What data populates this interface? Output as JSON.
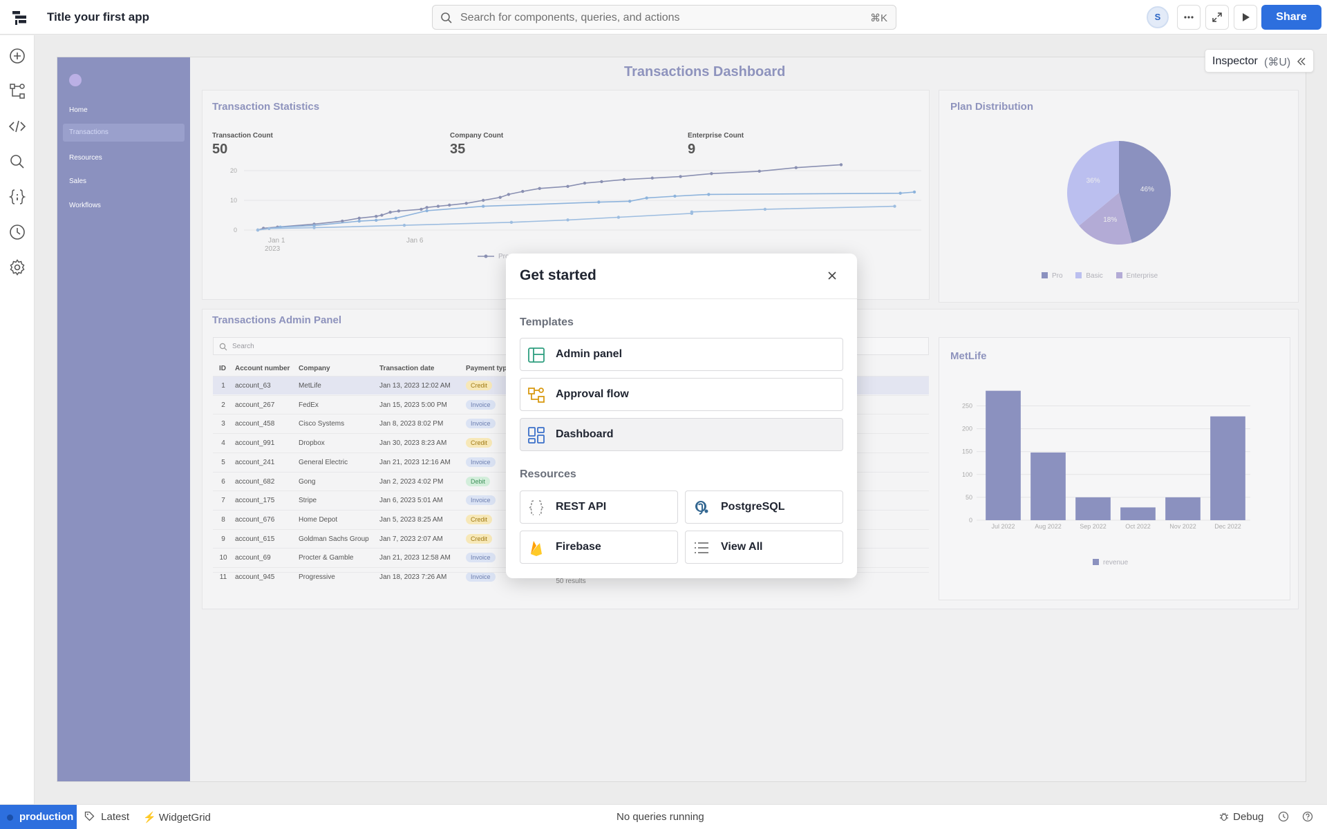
{
  "app": {
    "title": "Title your first app"
  },
  "search": {
    "placeholder": "Search for components, queries, and actions",
    "shortcut": "⌘K"
  },
  "header": {
    "avatar_initial": "S",
    "share_label": "Share"
  },
  "rail": {
    "icons": [
      "plus-circle-icon",
      "workflow-icon",
      "code-icon",
      "search-icon",
      "braces-icon",
      "history-icon",
      "settings-icon"
    ]
  },
  "dashboard": {
    "title": "Transactions Dashboard",
    "nav": {
      "items": [
        "Home",
        "Transactions",
        "Resources",
        "Sales",
        "Workflows"
      ],
      "active": "Transactions"
    },
    "stats_card": {
      "title": "Transaction Statistics",
      "stats": [
        {
          "label": "Transaction Count",
          "value": "50"
        },
        {
          "label": "Company Count",
          "value": "35"
        },
        {
          "label": "Enterprise Count",
          "value": "9"
        }
      ],
      "x_ticks": [
        "Jan 1",
        "2023",
        "Jan 6"
      ],
      "legend": "Pro"
    },
    "plan_card": {
      "title": "Plan Distribution",
      "legend": [
        "Pro",
        "Basic",
        "Enterprise"
      ]
    },
    "admin_card": {
      "title": "Transactions Admin Panel",
      "search_placeholder": "Search",
      "columns": [
        "ID",
        "Account number",
        "Company",
        "Transaction date",
        "Payment typ"
      ],
      "rows": [
        {
          "id": "1",
          "account": "account_63",
          "company": "MetLife",
          "date": "Jan 13, 2023 12:02 AM",
          "type": "Credit"
        },
        {
          "id": "2",
          "account": "account_267",
          "company": "FedEx",
          "date": "Jan 15, 2023 5:00 PM",
          "type": "Invoice"
        },
        {
          "id": "3",
          "account": "account_458",
          "company": "Cisco Systems",
          "date": "Jan 8, 2023 8:02 PM",
          "type": "Invoice"
        },
        {
          "id": "4",
          "account": "account_991",
          "company": "Dropbox",
          "date": "Jan 30, 2023 8:23 AM",
          "type": "Credit"
        },
        {
          "id": "5",
          "account": "account_241",
          "company": "General Electric",
          "date": "Jan 21, 2023 12:16 AM",
          "type": "Invoice"
        },
        {
          "id": "6",
          "account": "account_682",
          "company": "Gong",
          "date": "Jan 2, 2023 4:02 PM",
          "type": "Debit"
        },
        {
          "id": "7",
          "account": "account_175",
          "company": "Stripe",
          "date": "Jan 6, 2023 5:01 AM",
          "type": "Invoice"
        },
        {
          "id": "8",
          "account": "account_676",
          "company": "Home Depot",
          "date": "Jan 5, 2023 8:25 AM",
          "type": "Credit"
        },
        {
          "id": "9",
          "account": "account_615",
          "company": "Goldman Sachs Group",
          "date": "Jan 7, 2023 2:07 AM",
          "type": "Credit"
        },
        {
          "id": "10",
          "account": "account_69",
          "company": "Procter & Gamble",
          "date": "Jan 21, 2023 12:58 AM",
          "type": "Invoice"
        },
        {
          "id": "11",
          "account": "account_945",
          "company": "Progressive",
          "date": "Jan 18, 2023 7:26 AM",
          "type": "Invoice"
        }
      ],
      "results": "50 results"
    },
    "metlife_card": {
      "title": "MetLife",
      "legend": "revenue"
    }
  },
  "chart_data": [
    {
      "type": "line",
      "title": "",
      "xlabel": "",
      "ylabel": "",
      "ylim": [
        0,
        20
      ],
      "y_ticks": [
        0,
        10,
        20
      ],
      "x_ticks": [
        "Jan 1 2023",
        "Jan 6"
      ],
      "grid": true,
      "legend_position": "bottom",
      "series": [
        {
          "name": "Pro",
          "color": "#8a90b2",
          "points": [
            [
              0,
              0
            ],
            [
              0.1,
              0.6
            ],
            [
              0.35,
              1
            ],
            [
              1,
              2
            ],
            [
              1.5,
              3
            ],
            [
              1.8,
              4
            ],
            [
              2.1,
              4.6
            ],
            [
              2.2,
              5
            ],
            [
              2.35,
              6
            ],
            [
              2.5,
              6.4
            ],
            [
              2.9,
              7
            ],
            [
              3,
              7.6
            ],
            [
              3.2,
              8
            ],
            [
              3.4,
              8.4
            ],
            [
              3.7,
              9
            ],
            [
              4,
              10
            ],
            [
              4.3,
              11
            ],
            [
              4.45,
              12
            ],
            [
              4.7,
              13
            ],
            [
              5,
              14
            ],
            [
              5.5,
              14.7
            ],
            [
              5.8,
              15.8
            ],
            [
              6.1,
              16.3
            ],
            [
              6.5,
              17
            ],
            [
              7,
              17.5
            ],
            [
              7.5,
              18
            ],
            [
              8.05,
              19
            ],
            [
              8.9,
              19.8
            ],
            [
              9.55,
              21
            ],
            [
              10.35,
              22
            ]
          ]
        },
        {
          "name": "",
          "color": "#8db3dc",
          "points": [
            [
              0,
              0
            ],
            [
              0.4,
              1
            ],
            [
              1,
              1.5
            ],
            [
              1.8,
              3
            ],
            [
              2.1,
              3.3
            ],
            [
              2.45,
              4
            ],
            [
              3,
              6.5
            ],
            [
              4,
              8
            ],
            [
              6.05,
              9.4
            ],
            [
              6.6,
              9.7
            ],
            [
              6.9,
              10.8
            ],
            [
              7.4,
              11.4
            ],
            [
              8,
              12
            ],
            [
              11.4,
              12.4
            ],
            [
              11.65,
              12.8
            ]
          ]
        },
        {
          "name": "",
          "color": "#9dbde0",
          "points": [
            [
              0,
              0
            ],
            [
              0.2,
              0.5
            ],
            [
              1,
              0.8
            ],
            [
              2.6,
              1.6
            ],
            [
              4.5,
              2.6
            ],
            [
              5.5,
              3.4
            ],
            [
              6.4,
              4.3
            ],
            [
              7.7,
              5.6
            ],
            [
              7.7,
              6.1
            ],
            [
              9,
              7
            ],
            [
              11.3,
              8
            ]
          ]
        }
      ]
    },
    {
      "type": "pie",
      "title": "",
      "series": [
        {
          "name": "",
          "labels": [
            "Pro",
            "Basic",
            "Enterprise"
          ],
          "values": [
            46,
            36,
            18
          ],
          "colors": [
            "#8b91bf",
            "#bbbfef",
            "#b3abd6"
          ]
        }
      ]
    },
    {
      "type": "bar",
      "title": "",
      "xlabel": "",
      "ylabel": "",
      "categories": [
        "Jul 2022",
        "Aug 2022",
        "Sep 2022",
        "Oct 2022",
        "Nov 2022",
        "Dec 2022"
      ],
      "y_ticks": [
        0,
        50,
        100,
        150,
        200,
        250
      ],
      "ylim": [
        0,
        290
      ],
      "legend_position": "bottom",
      "series": [
        {
          "name": "revenue",
          "color": "#8b91bf",
          "values": [
            283,
            148,
            50,
            28,
            50,
            227
          ]
        }
      ]
    }
  ],
  "modal": {
    "title": "Get started",
    "templates_label": "Templates",
    "templates": [
      "Admin panel",
      "Approval flow",
      "Dashboard"
    ],
    "resources_label": "Resources",
    "resources": [
      "REST API",
      "PostgreSQL",
      "Firebase",
      "View All"
    ]
  },
  "inspector": {
    "label": "Inspector",
    "shortcut": "(⌘U)"
  },
  "statusbar": {
    "environment": "production",
    "version": "Latest",
    "layout": "WidgetGrid",
    "queries": "No queries running",
    "debug": "Debug"
  },
  "colors": {
    "primary": "#2d6fde",
    "nav": "#8b91bf",
    "bar": "#8b91bf"
  }
}
